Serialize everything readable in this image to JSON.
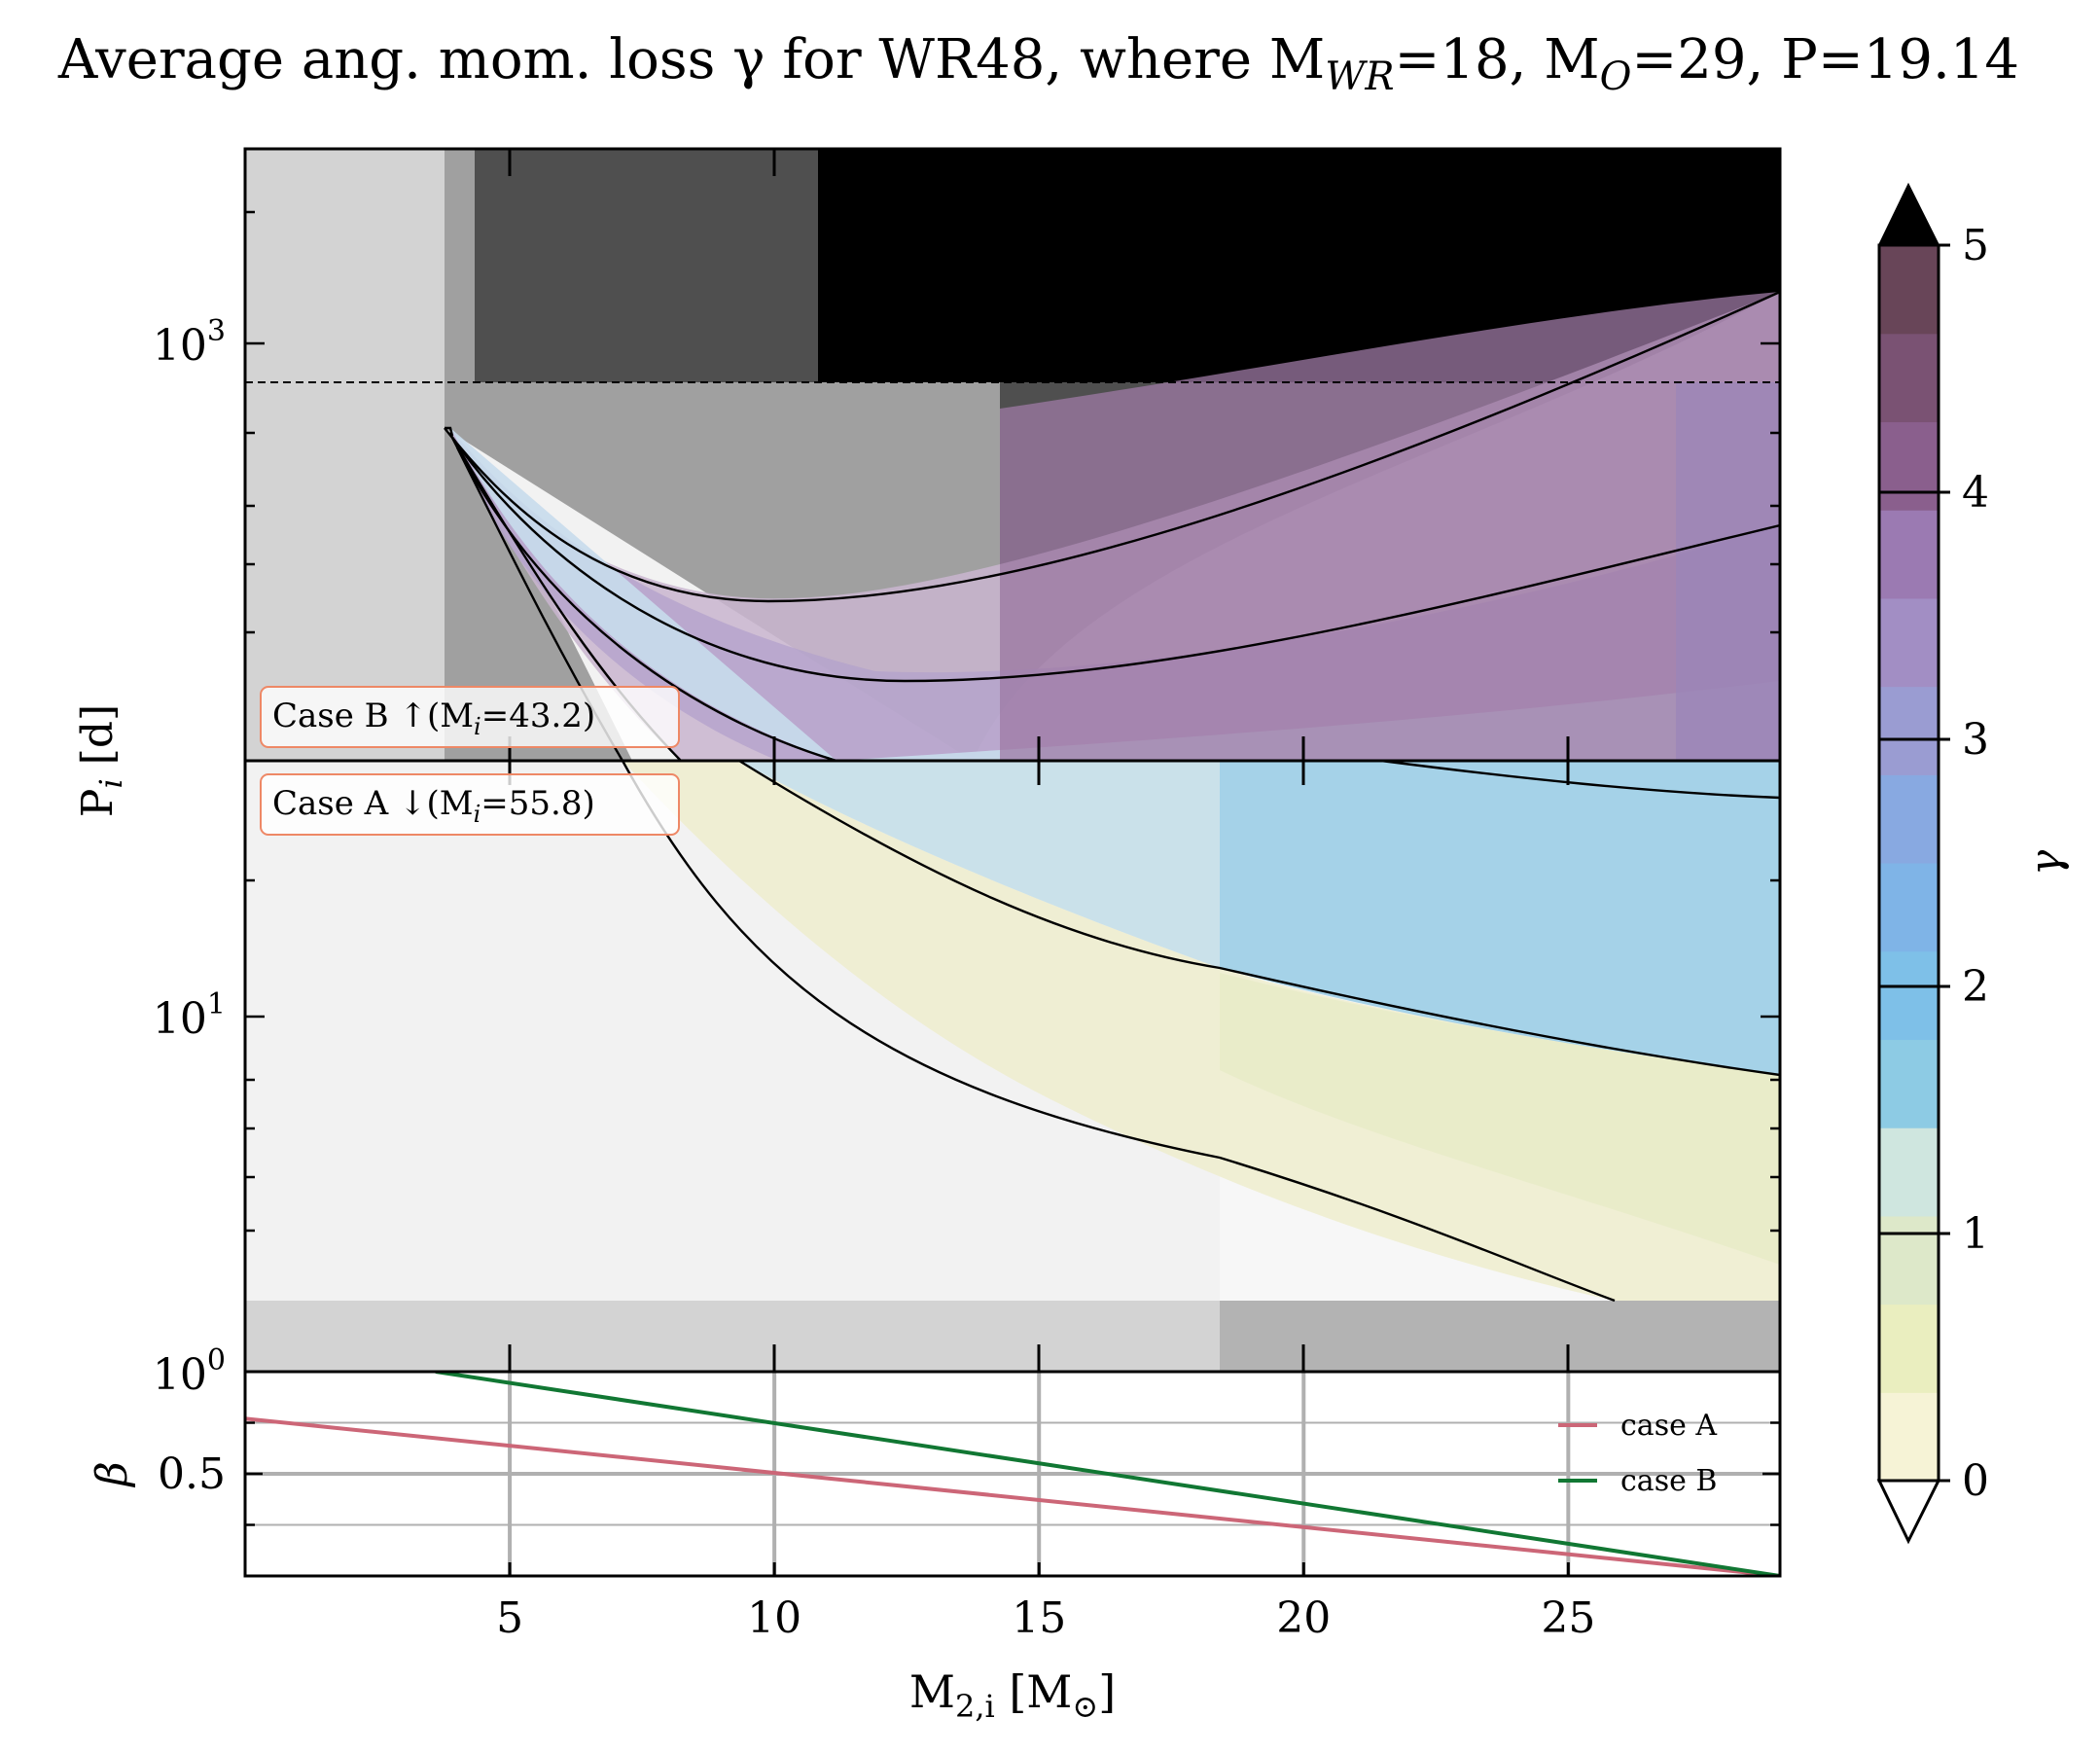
{
  "chart_data": [
    {
      "type": "heatmap",
      "panel": "main",
      "title": "Average ang. mom. loss γ for WR48, where M",
      "title_mwr_sub": "WR",
      "title_mwr_val": "=18, M",
      "title_mo_sub": "O",
      "title_tail": "=29, P=19.14",
      "ylabel": "P",
      "ylabel_sub": "i",
      "ylabel_unit": " [d]",
      "yscale": "log",
      "ylim": [
        1.0,
        2000
      ],
      "yticks": [
        {
          "value": 1000,
          "base": "10",
          "exp": "3"
        },
        {
          "value": 10,
          "base": "10",
          "exp": "1"
        },
        {
          "value": 1,
          "base": "10",
          "exp": "0"
        }
      ],
      "xlim": [
        0,
        29
      ],
      "p_dashed_line": 800,
      "case_split_p": 40,
      "annotations": [
        {
          "text": "Case B ↑(M",
          "sub": "i",
          "tail": "=43.2)"
        },
        {
          "text": "Case A ↓(M",
          "sub": "i",
          "tail": "=55.8)"
        }
      ],
      "colorbar": {
        "label": "γ",
        "range": [
          0,
          5
        ],
        "ticks": [
          "0",
          "1",
          "2",
          "3",
          "4",
          "5"
        ],
        "extend": "both",
        "colors": [
          "#f6f3d6",
          "#eaeebf",
          "#dde8c9",
          "#cfe6df",
          "#8dcbe4",
          "#7ec0e8",
          "#7fb4e7",
          "#88a9e1",
          "#9a9cd2",
          "#a28ec4",
          "#9b7ab2",
          "#8a5f8d",
          "#7a5273",
          "#684558"
        ]
      }
    },
    {
      "type": "line",
      "panel": "beta",
      "xlabel": "M",
      "xlabel_sub": "2,i",
      "xlabel_unit": " [M",
      "xlabel_sun": "⊙",
      "xlabel_close": "]",
      "ylabel": "β",
      "xlim": [
        0,
        29
      ],
      "ylim": [
        0.0,
        1.0
      ],
      "yticks": [
        {
          "value": 1.0,
          "label": "1.0"
        },
        {
          "value": 0.5,
          "label": "0.5"
        }
      ],
      "xticks": [
        5,
        10,
        15,
        20,
        25
      ],
      "series": [
        {
          "name": "case A",
          "color": "#cc6677",
          "x": [
            0,
            29
          ],
          "y": [
            0.77,
            0.0
          ]
        },
        {
          "name": "case B",
          "color": "#117733",
          "x": [
            3.6,
            29
          ],
          "y": [
            1.0,
            0.0
          ]
        }
      ]
    }
  ]
}
